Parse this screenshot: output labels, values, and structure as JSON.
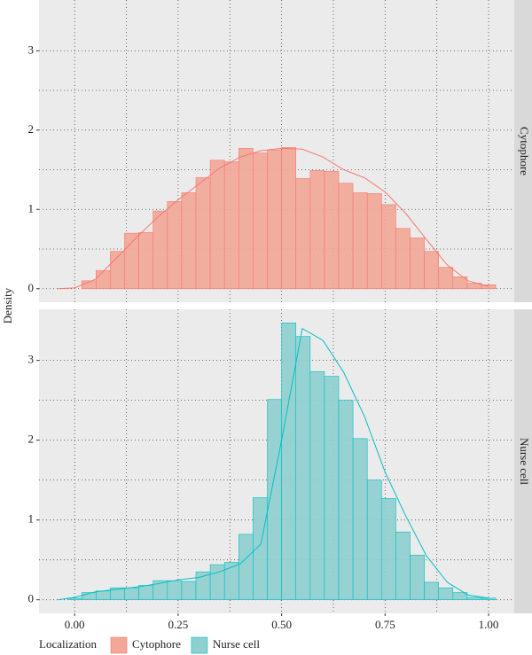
{
  "chart_data": {
    "type": "histogram",
    "y_label": "Density",
    "legend_title": "Localization",
    "legend_position": "bottom",
    "grid": true,
    "bins": [
      -0.0172,
      0.0173,
      0.0518,
      0.0862,
      0.1207,
      0.1552,
      0.1897,
      0.2241,
      0.2586,
      0.2931,
      0.3276,
      0.3621,
      0.3966,
      0.431,
      0.4655,
      0.5,
      0.5345,
      0.569,
      0.6034,
      0.6379,
      0.6724,
      0.7069,
      0.7414,
      0.7759,
      0.8103,
      0.8448,
      0.8793,
      0.9138,
      0.9483,
      0.9828,
      1.0172
    ],
    "density_x": [
      -0.04,
      0,
      0.05,
      0.1,
      0.15,
      0.2,
      0.25,
      0.3,
      0.35,
      0.4,
      0.45,
      0.5,
      0.55,
      0.6,
      0.65,
      0.7,
      0.75,
      0.8,
      0.85,
      0.9,
      0.95,
      1.0
    ],
    "series": [
      {
        "name": "Cytophore",
        "color": "#f8766d",
        "fill": "#f2a797",
        "values": [
          0,
          0.1,
          0.23,
          0.47,
          0.7,
          0.71,
          0.98,
          1.1,
          1.21,
          1.4,
          1.62,
          1.6,
          1.77,
          1.71,
          1.75,
          1.78,
          1.39,
          1.49,
          1.48,
          1.33,
          1.21,
          1.2,
          1.06,
          0.76,
          0.64,
          0.47,
          0.27,
          0.15,
          0.07,
          0.05
        ],
        "density": [
          0,
          0.01,
          0.12,
          0.38,
          0.65,
          0.9,
          1.12,
          1.32,
          1.52,
          1.66,
          1.74,
          1.77,
          1.76,
          1.66,
          1.5,
          1.4,
          1.22,
          0.95,
          0.62,
          0.3,
          0.1,
          0.03
        ]
      },
      {
        "name": "Nurse cell",
        "color": "#00bfc4",
        "fill": "#8ecfd0",
        "values": [
          0.02,
          0.09,
          0.11,
          0.15,
          0.15,
          0.18,
          0.24,
          0.24,
          0.23,
          0.35,
          0.44,
          0.47,
          0.82,
          1.28,
          2.51,
          3.47,
          3.3,
          2.86,
          2.8,
          2.5,
          2.02,
          1.5,
          1.27,
          0.85,
          0.56,
          0.22,
          0.15,
          0.09,
          0.03,
          0.02
        ],
        "density": [
          0,
          0.03,
          0.1,
          0.13,
          0.16,
          0.2,
          0.25,
          0.28,
          0.35,
          0.45,
          0.7,
          2.0,
          3.4,
          3.25,
          2.85,
          2.3,
          1.6,
          1.05,
          0.55,
          0.22,
          0.06,
          0.02
        ]
      }
    ],
    "xlim": [
      -0.086,
      1.062
    ],
    "xticks": [
      {
        "value": 0,
        "label": "0.00"
      },
      0.25,
      {
        "value": 0.5,
        "label": "0.50"
      },
      0.75,
      {
        "value": 1,
        "label": "1.00"
      }
    ],
    "ylim": [
      -0.17,
      3.64
    ],
    "yticks": [
      0,
      1,
      2,
      3
    ]
  }
}
